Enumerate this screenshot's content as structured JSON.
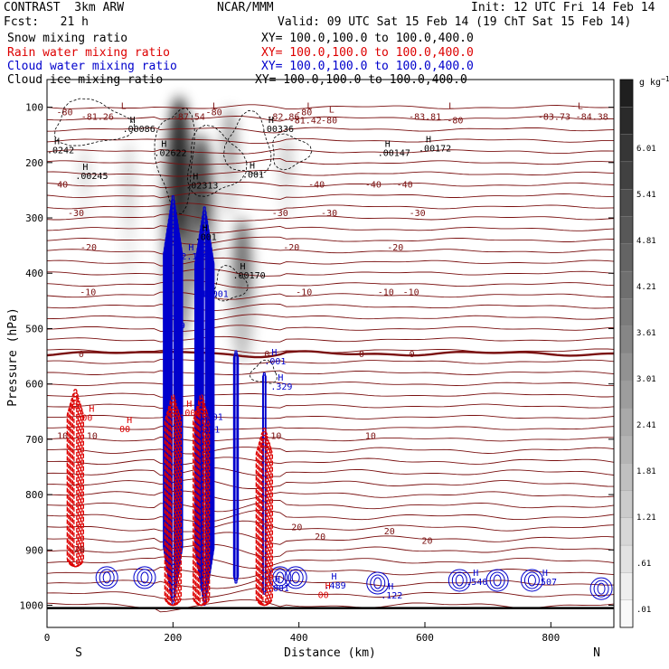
{
  "header": {
    "line1_left": "CONTRAST  3km ARW",
    "line1_center": "NCAR/MMM",
    "line1_right": "Init: 12 UTC Fri 14 Feb 14",
    "line2_left": "Fcst:   21 h",
    "line2_right": "Valid: 09 UTC Sat 15 Feb 14 (19 ChT Sat 15 Feb 14)",
    "fields": [
      {
        "name": "Snow mixing ratio",
        "xy": "XY= 100.0,100.0 to 100.0,400.0",
        "color": "#000000"
      },
      {
        "name": "Rain water mixing ratio",
        "xy": "XY= 100.0,100.0 to 100.0,400.0",
        "color": "#dd0000"
      },
      {
        "name": "Cloud water mixing ratio",
        "xy": "XY= 100.0,100.0 to 100.0,400.0",
        "color": "#0000cc"
      },
      {
        "name": "Cloud ice mixing ratio",
        "xy": "XY= 100.0,100.0 to 100.0,400.0",
        "color": "#000000"
      }
    ]
  },
  "chart_data": {
    "type": "heatmap",
    "xlabel": "Distance (km)",
    "ylabel": "Pressure (hPa)",
    "xlim": [
      0,
      900
    ],
    "ylim": [
      1040,
      50
    ],
    "x_ticks": [
      "0",
      "200",
      "400",
      "600",
      "800"
    ],
    "y_ticks": [
      "100",
      "200",
      "300",
      "400",
      "500",
      "600",
      "700",
      "800",
      "900",
      "1000"
    ],
    "x_end_labels": {
      "left": "S",
      "right": "N"
    },
    "colorbar": {
      "unit": "g kg",
      "unit_exp": "−1",
      "levels": [
        ".01",
        ".61",
        "1.21",
        "1.81",
        "2.41",
        "3.01",
        "3.61",
        "4.21",
        "4.81",
        "5.41",
        "6.01"
      ]
    },
    "temperature_labels": [
      {
        "x": 15,
        "p": 108,
        "text": "-80"
      },
      {
        "x": 252,
        "p": 108,
        "text": "-80"
      },
      {
        "x": 395,
        "p": 108,
        "text": "-80"
      },
      {
        "x": 435,
        "p": 123,
        "text": "-80"
      },
      {
        "x": 635,
        "p": 123,
        "text": "-80"
      },
      {
        "x": 415,
        "p": 239,
        "text": "-40"
      },
      {
        "x": 505,
        "p": 239,
        "text": "-40"
      },
      {
        "x": 555,
        "p": 239,
        "text": "-40"
      },
      {
        "x": 16,
        "p": 239,
        "text": "40"
      },
      {
        "x": 33,
        "p": 290,
        "text": "-30"
      },
      {
        "x": 357,
        "p": 290,
        "text": "-30"
      },
      {
        "x": 435,
        "p": 290,
        "text": "-30"
      },
      {
        "x": 575,
        "p": 290,
        "text": "-30"
      },
      {
        "x": 375,
        "p": 352,
        "text": "-20"
      },
      {
        "x": 540,
        "p": 352,
        "text": "-20"
      },
      {
        "x": 53,
        "p": 352,
        "text": "-20"
      },
      {
        "x": 52,
        "p": 433,
        "text": "-10"
      },
      {
        "x": 395,
        "p": 433,
        "text": "-10"
      },
      {
        "x": 525,
        "p": 433,
        "text": "-10"
      },
      {
        "x": 565,
        "p": 433,
        "text": "-10"
      },
      {
        "x": 50,
        "p": 545,
        "text": "0"
      },
      {
        "x": 345,
        "p": 545,
        "text": "0"
      },
      {
        "x": 495,
        "p": 545,
        "text": "0"
      },
      {
        "x": 575,
        "p": 545,
        "text": "0"
      },
      {
        "x": 16,
        "p": 693,
        "text": "10"
      },
      {
        "x": 63,
        "p": 693,
        "text": "10"
      },
      {
        "x": 355,
        "p": 693,
        "text": "10"
      },
      {
        "x": 505,
        "p": 693,
        "text": "10"
      },
      {
        "x": 43,
        "p": 898,
        "text": "20"
      },
      {
        "x": 388,
        "p": 858,
        "text": "20"
      },
      {
        "x": 425,
        "p": 875,
        "text": "20"
      },
      {
        "x": 535,
        "p": 865,
        "text": "20"
      },
      {
        "x": 595,
        "p": 882,
        "text": "20"
      }
    ],
    "low_labels": [
      {
        "x": 60,
        "p": 103,
        "text": "L",
        "value": "-81.26"
      },
      {
        "x": 205,
        "p": 103,
        "text": "L",
        "value": "-87.54"
      },
      {
        "x": 355,
        "p": 103,
        "text": "L",
        "value": "-82.86"
      },
      {
        "x": 390,
        "p": 110,
        "text": "L",
        "value": "-81.42"
      },
      {
        "x": 580,
        "p": 103,
        "text": "L",
        "value": "-83.81"
      },
      {
        "x": 785,
        "p": 103,
        "text": "L",
        "value": "-83.73"
      },
      {
        "x": 845,
        "p": 103,
        "text": "L",
        "value": "-84.38"
      }
    ],
    "max_labels": [
      {
        "x": 120,
        "p": 145,
        "value": ".00086",
        "color": "#000000"
      },
      {
        "x": 340,
        "p": 145,
        "value": ".00336",
        "color": "#000000"
      },
      {
        "x": 0,
        "p": 183,
        "value": ".0242",
        "color": "#000000"
      },
      {
        "x": 170,
        "p": 188,
        "value": ".02622",
        "color": "#000000"
      },
      {
        "x": 525,
        "p": 188,
        "value": ".00147",
        "color": "#000000"
      },
      {
        "x": 590,
        "p": 180,
        "value": ".00172",
        "color": "#000000"
      },
      {
        "x": 45,
        "p": 230,
        "value": ".00245",
        "color": "#000000"
      },
      {
        "x": 220,
        "p": 247,
        "value": ".02313",
        "color": "#000000"
      },
      {
        "x": 310,
        "p": 227,
        "value": ".001",
        "color": "#000000"
      },
      {
        "x": 295,
        "p": 409,
        "value": ".00170",
        "color": "#000000"
      },
      {
        "x": 235,
        "p": 340,
        "value": ".001",
        "color": "#000000"
      },
      {
        "x": 213,
        "p": 375,
        "value": "2.139",
        "color": "#0000cc"
      },
      {
        "x": 245,
        "p": 443,
        "value": "1.001",
        "color": "#0000cc"
      },
      {
        "x": 185,
        "p": 500,
        "value": "1.39",
        "color": "#0000cc"
      },
      {
        "x": 345,
        "p": 565,
        "value": ".001",
        "color": "#0000cc"
      },
      {
        "x": 355,
        "p": 610,
        "value": ".329",
        "color": "#0000cc"
      },
      {
        "x": 210,
        "p": 658,
        "value": ".001",
        "color": "#dd0000"
      },
      {
        "x": 245,
        "p": 665,
        "value": ".001",
        "color": "#0000cc"
      },
      {
        "x": 240,
        "p": 688,
        "value": ".201",
        "color": "#0000cc"
      },
      {
        "x": 350,
        "p": 975,
        "value": ".001",
        "color": "#0000cc"
      },
      {
        "x": 440,
        "p": 970,
        "value": ".489",
        "color": "#0000cc"
      },
      {
        "x": 530,
        "p": 988,
        "value": ".122",
        "color": "#0000cc"
      },
      {
        "x": 665,
        "p": 963,
        "value": ".540",
        "color": "#0000cc"
      },
      {
        "x": 775,
        "p": 963,
        "value": ".507",
        "color": "#0000cc"
      },
      {
        "x": 55,
        "p": 667,
        "value": "00",
        "color": "#dd0000"
      },
      {
        "x": 115,
        "p": 687,
        "value": "00",
        "color": "#dd0000"
      },
      {
        "x": 430,
        "p": 987,
        "value": "00",
        "color": "#dd0000"
      }
    ],
    "snow_cores": [
      {
        "x": 210,
        "p_top": 80,
        "p_bot": 520,
        "intensity": 6.01
      },
      {
        "x": 245,
        "p_top": 150,
        "p_bot": 440,
        "intensity": 4.8
      },
      {
        "x": 310,
        "p_top": 300,
        "p_bot": 560,
        "intensity": 3.6
      },
      {
        "x": 290,
        "p_top": 100,
        "p_bot": 300,
        "intensity": 2.2
      },
      {
        "x": 130,
        "p_top": 160,
        "p_bot": 420,
        "intensity": 1.0
      },
      {
        "x": 60,
        "p_top": 170,
        "p_bot": 320,
        "intensity": 0.8
      },
      {
        "x": 380,
        "p_top": 150,
        "p_bot": 300,
        "intensity": 1.2
      }
    ],
    "cloud_water_cores": [
      {
        "x": 200,
        "p_top": 260,
        "p_bot": 1000,
        "intensity": 2.1
      },
      {
        "x": 250,
        "p_top": 280,
        "p_bot": 1000,
        "intensity": 2.1
      },
      {
        "x": 300,
        "p_top": 540,
        "p_bot": 960,
        "intensity": 0.5
      },
      {
        "x": 345,
        "p_top": 580,
        "p_bot": 980,
        "intensity": 0.4
      }
    ],
    "rain_cores": [
      {
        "x": 200,
        "p_top": 620,
        "p_bot": 1000
      },
      {
        "x": 245,
        "p_top": 620,
        "p_bot": 1000
      },
      {
        "x": 345,
        "p_top": 680,
        "p_bot": 1000
      },
      {
        "x": 45,
        "p_top": 610,
        "p_bot": 930
      }
    ],
    "freezing_level_hpa": 545,
    "surface_hpa": 1005
  }
}
